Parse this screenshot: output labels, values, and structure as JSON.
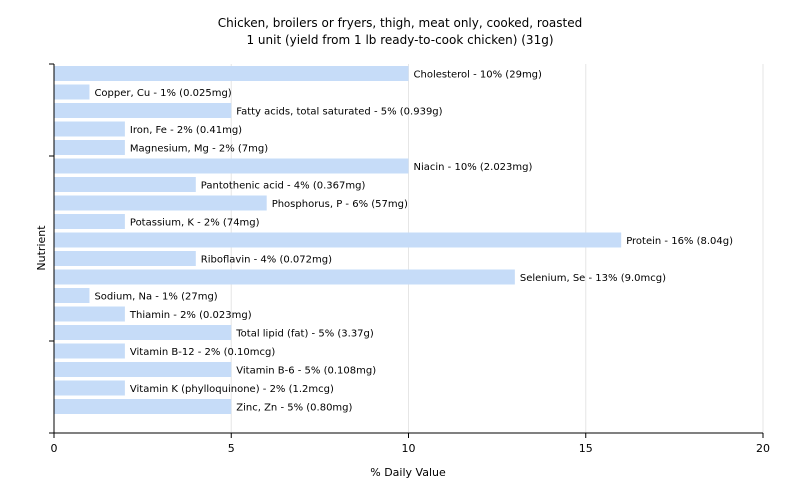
{
  "colors": {
    "bar": "#c6dcf8",
    "grid": "#e6e6e6",
    "axis": "#000000",
    "text": "#000000"
  },
  "chart_data": {
    "type": "bar",
    "orientation": "horizontal",
    "title": "Chicken, broilers or fryers, thigh, meat only, cooked, roasted",
    "subtitle": "1 unit (yield from 1 lb ready-to-cook chicken) (31g)",
    "xlabel": "% Daily Value",
    "ylabel": "Nutrient",
    "xlim": [
      0,
      20
    ],
    "xticks": [
      0,
      5,
      10,
      15,
      20
    ],
    "grid": true,
    "categories": [
      "Cholesterol",
      "Copper, Cu",
      "Fatty acids, total saturated",
      "Iron, Fe",
      "Magnesium, Mg",
      "Niacin",
      "Pantothenic acid",
      "Phosphorus, P",
      "Potassium, K",
      "Protein",
      "Riboflavin",
      "Selenium, Se",
      "Sodium, Na",
      "Thiamin",
      "Total lipid (fat)",
      "Vitamin B-12",
      "Vitamin B-6",
      "Vitamin K (phylloquinone)",
      "Zinc, Zn"
    ],
    "values": [
      10,
      1,
      5,
      2,
      2,
      10,
      4,
      6,
      2,
      16,
      4,
      13,
      1,
      2,
      5,
      2,
      5,
      2,
      5
    ],
    "labels": [
      "Cholesterol - 10% (29mg)",
      "Copper, Cu - 1% (0.025mg)",
      "Fatty acids, total saturated - 5% (0.939g)",
      "Iron, Fe - 2% (0.41mg)",
      "Magnesium, Mg - 2% (7mg)",
      "Niacin - 10% (2.023mg)",
      "Pantothenic acid - 4% (0.367mg)",
      "Phosphorus, P - 6% (57mg)",
      "Potassium, K - 2% (74mg)",
      "Protein - 16% (8.04g)",
      "Riboflavin - 4% (0.072mg)",
      "Selenium, Se - 13% (9.0mcg)",
      "Sodium, Na - 1% (27mg)",
      "Thiamin - 2% (0.023mg)",
      "Total lipid (fat) - 5% (3.37g)",
      "Vitamin B-12 - 2% (0.10mcg)",
      "Vitamin B-6 - 5% (0.108mg)",
      "Vitamin K (phylloquinone) - 2% (1.2mcg)",
      "Zinc, Zn - 5% (0.80mg)"
    ]
  }
}
